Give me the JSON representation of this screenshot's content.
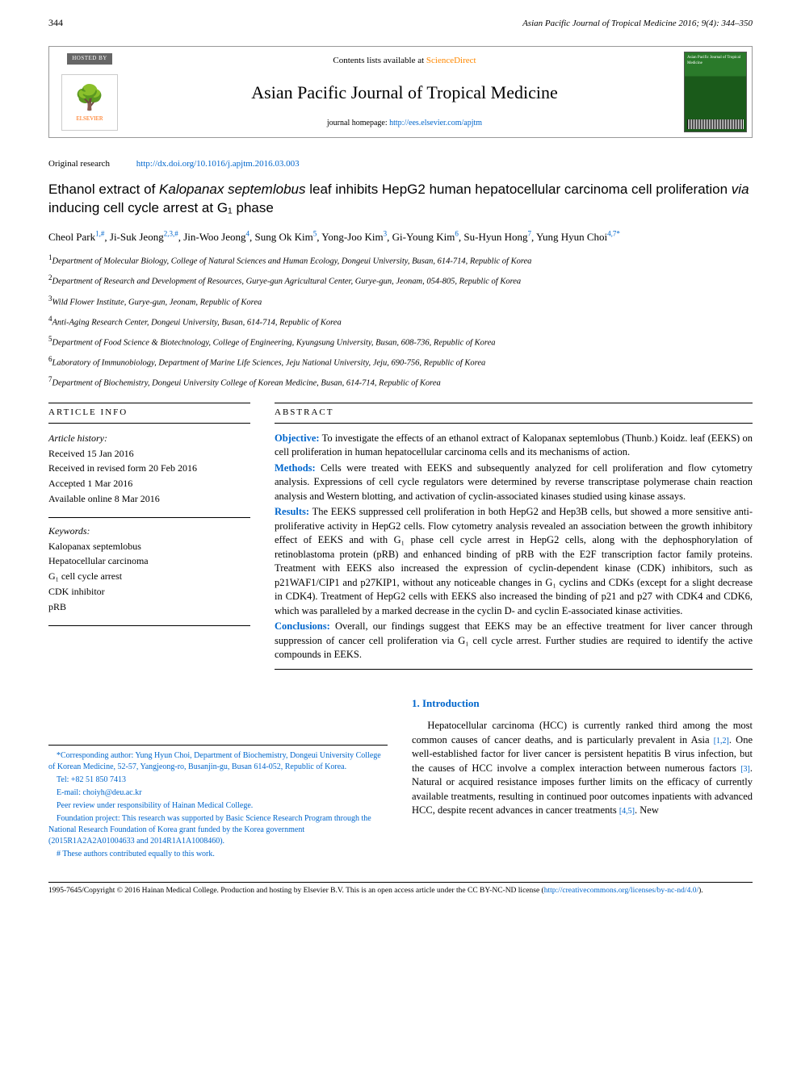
{
  "header": {
    "page_number": "344",
    "journal_ref": "Asian Pacific Journal of Tropical Medicine 2016; 9(4): 344–350"
  },
  "banner": {
    "hosted_by": "HOSTED BY",
    "publisher": "ELSEVIER",
    "contents_prefix": "Contents lists available at ",
    "contents_link": "ScienceDirect",
    "journal_title": "Asian Pacific Journal of Tropical Medicine",
    "homepage_prefix": "journal homepage: ",
    "homepage_url": "http://ees.elsevier.com/apjtm",
    "cover_text": "Asian Pacific Journal of Tropical Medicine"
  },
  "doi": {
    "kind": "Original research",
    "url": "http://dx.doi.org/10.1016/j.apjtm.2016.03.003"
  },
  "title": {
    "pre": "Ethanol extract of ",
    "species": "Kalopanax septemlobus",
    "mid": " leaf inhibits HepG2 human hepatocellular carcinoma cell proliferation ",
    "via": "via",
    "post": " inducing cell cycle arrest at G₁ phase"
  },
  "authors": [
    {
      "name": "Cheol Park",
      "aff": "1,#"
    },
    {
      "name": "Ji-Suk Jeong",
      "aff": "2,3,#"
    },
    {
      "name": "Jin-Woo Jeong",
      "aff": "4"
    },
    {
      "name": "Sung Ok Kim",
      "aff": "5"
    },
    {
      "name": "Yong-Joo Kim",
      "aff": "3"
    },
    {
      "name": "Gi-Young Kim",
      "aff": "6"
    },
    {
      "name": "Su-Hyun Hong",
      "aff": "7"
    },
    {
      "name": "Yung Hyun Choi",
      "aff": "4,7*"
    }
  ],
  "affiliations": [
    "Department of Molecular Biology, College of Natural Sciences and Human Ecology, Dongeui University, Busan, 614-714, Republic of Korea",
    "Department of Research and Development of Resources, Gurye-gun Agricultural Center, Gurye-gun, Jeonam, 054-805, Republic of Korea",
    "Wild Flower Institute, Gurye-gun, Jeonam, Republic of Korea",
    "Anti-Aging Research Center, Dongeui University, Busan, 614-714, Republic of Korea",
    "Department of Food Science & Biotechnology, College of Engineering, Kyungsung University, Busan, 608-736, Republic of Korea",
    "Laboratory of Immunobiology, Department of Marine Life Sciences, Jeju National University, Jeju, 690-756, Republic of Korea",
    "Department of Biochemistry, Dongeui University College of Korean Medicine, Busan, 614-714, Republic of Korea"
  ],
  "article_info": {
    "heading": "ARTICLE INFO",
    "history_label": "Article history:",
    "history": [
      "Received 15 Jan 2016",
      "Received in revised form 20 Feb 2016",
      "Accepted 1 Mar 2016",
      "Available online 8 Mar 2016"
    ],
    "keywords_label": "Keywords:",
    "keywords": [
      "Kalopanax septemlobus",
      "Hepatocellular carcinoma",
      "G₁ cell cycle arrest",
      "CDK inhibitor",
      "pRB"
    ]
  },
  "abstract": {
    "heading": "ABSTRACT",
    "objective_label": "Objective:",
    "objective": " To investigate the effects of an ethanol extract of Kalopanax septemlobus (Thunb.) Koidz. leaf (EEKS) on cell proliferation in human hepatocellular carcinoma cells and its mechanisms of action.",
    "methods_label": "Methods:",
    "methods": " Cells were treated with EEKS and subsequently analyzed for cell proliferation and flow cytometry analysis. Expressions of cell cycle regulators were determined by reverse transcriptase polymerase chain reaction analysis and Western blotting, and activation of cyclin-associated kinases studied using kinase assays.",
    "results_label": "Results:",
    "results": " The EEKS suppressed cell proliferation in both HepG2 and Hep3B cells, but showed a more sensitive anti-proliferative activity in HepG2 cells. Flow cytometry analysis revealed an association between the growth inhibitory effect of EEKS and with G₁ phase cell cycle arrest in HepG2 cells, along with the dephosphorylation of retinoblastoma protein (pRB) and enhanced binding of pRB with the E2F transcription factor family proteins. Treatment with EEKS also increased the expression of cyclin-dependent kinase (CDK) inhibitors, such as p21WAF1/CIP1 and p27KIP1, without any noticeable changes in G₁ cyclins and CDKs (except for a slight decrease in CDK4). Treatment of HepG2 cells with EEKS also increased the binding of p21 and p27 with CDK4 and CDK6, which was paralleled by a marked decrease in the cyclin D- and cyclin E-associated kinase activities.",
    "conclusions_label": "Conclusions:",
    "conclusions": " Overall, our findings suggest that EEKS may be an effective treatment for liver cancer through suppression of cancer cell proliferation via G₁ cell cycle arrest. Further studies are required to identify the active compounds in EEKS."
  },
  "intro": {
    "heading": "1. Introduction",
    "body_pre": "Hepatocellular carcinoma (HCC) is currently ranked third among the most common causes of cancer deaths, and is particularly prevalent in Asia ",
    "cite1": "[1,2]",
    "body_mid1": ". One well-established factor for liver cancer is persistent hepatitis B virus infection, but the causes of HCC involve a complex interaction between numerous factors ",
    "cite2": "[3]",
    "body_mid2": ". Natural or acquired resistance imposes further limits on the efficacy of currently available treatments, resulting in continued poor outcomes inpatients with advanced HCC, despite recent advances in cancer treatments ",
    "cite3": "[4,5]",
    "body_post": ". New"
  },
  "footnotes": {
    "corr": "*Corresponding author: Yung Hyun Choi, Department of Biochemistry, Dongeui University College of Korean Medicine, 52-57, Yangjeong-ro, Busanjin-gu, Busan 614-052, Republic of Korea.",
    "tel": "Tel: +82 51 850 7413",
    "email_label": "E-mail: ",
    "email": "choiyh@deu.ac.kr",
    "peer": "Peer review under responsibility of Hainan Medical College.",
    "funding": "Foundation project: This research was supported by Basic Science Research Program through the National Research Foundation of Korea grant funded by the Korea government (2015R1A2A2A01004633 and 2014R1A1A1008460).",
    "equal": "# These authors contributed equally to this work."
  },
  "copyright": {
    "text": "1995-7645/Copyright © 2016 Hainan Medical College. Production and hosting by Elsevier B.V. This is an open access article under the CC BY-NC-ND license (",
    "url": "http://creativecommons.org/licenses/by-nc-nd/4.0/",
    "close": ")."
  },
  "colors": {
    "link": "#0066cc",
    "accent_orange": "#ff8800",
    "text": "#000000",
    "background": "#ffffff"
  }
}
